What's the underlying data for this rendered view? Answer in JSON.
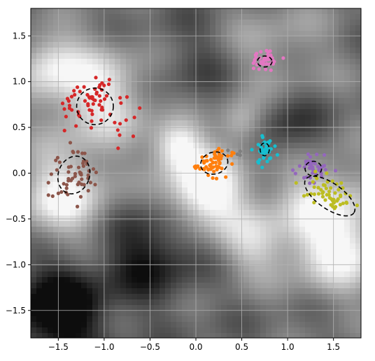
{
  "chart_data": {
    "type": "scatter",
    "title": "",
    "xlabel": "",
    "ylabel": "",
    "xlim": [
      -1.8,
      1.8
    ],
    "ylim": [
      -1.8,
      1.8
    ],
    "grid": true,
    "background": "grayscale heatmap",
    "x_ticks": [
      -1.5,
      -1.0,
      -0.5,
      0.0,
      0.5,
      1.0,
      1.5
    ],
    "y_ticks": [
      -1.5,
      -1.0,
      -0.5,
      0.0,
      0.5,
      1.0,
      1.5
    ],
    "x_tick_labels": [
      "−1.5",
      "−1.0",
      "−0.5",
      "0.0",
      "0.5",
      "1.0",
      "1.5"
    ],
    "y_tick_labels": [
      "−1.5",
      "−1.0",
      "−0.5",
      "0.0",
      "0.5",
      "1.0",
      "1.5"
    ],
    "clusters": [
      {
        "color": "#d62728",
        "center": [
          -1.1,
          0.73
        ],
        "ellipse": {
          "rx": 0.2,
          "ry": 0.2,
          "angle": 0
        },
        "spread": [
          0.26,
          0.18
        ],
        "n": 70
      },
      {
        "color": "#8c564b",
        "center": [
          -1.33,
          -0.02
        ],
        "ellipse": {
          "rx": 0.17,
          "ry": 0.21,
          "angle": -20
        },
        "spread": [
          0.18,
          0.2
        ],
        "n": 55
      },
      {
        "color": "#e377c2",
        "center": [
          0.75,
          1.22
        ],
        "ellipse": {
          "rx": 0.08,
          "ry": 0.06,
          "angle": 0
        },
        "spread": [
          0.13,
          0.07
        ],
        "n": 40
      },
      {
        "color": "#ff7f0e",
        "center": [
          0.2,
          0.11
        ],
        "ellipse": {
          "rx": 0.15,
          "ry": 0.12,
          "angle": 15
        },
        "spread": [
          0.14,
          0.1
        ],
        "n": 60
      },
      {
        "color": "#17becf",
        "center": [
          0.75,
          0.26
        ],
        "ellipse": {
          "rx": 0.05,
          "ry": 0.07,
          "angle": 0
        },
        "spread": [
          0.08,
          0.11
        ],
        "n": 40
      },
      {
        "color": "#9467bd",
        "center": [
          1.28,
          0.05
        ],
        "ellipse": {
          "rx": 0.09,
          "ry": 0.08,
          "angle": 0
        },
        "spread": [
          0.12,
          0.1
        ],
        "n": 45
      },
      {
        "color": "#bcbd22",
        "center": [
          1.46,
          -0.25
        ],
        "ellipse": {
          "rx": 0.32,
          "ry": 0.14,
          "angle": -35
        },
        "spread": [
          0.22,
          0.13
        ],
        "n": 55
      },
      {
        "color": "#7f7f7f",
        "center": [
          0.42,
          0.25
        ],
        "ellipse": null,
        "spread": [
          0.05,
          0.06
        ],
        "n": 4
      }
    ]
  }
}
